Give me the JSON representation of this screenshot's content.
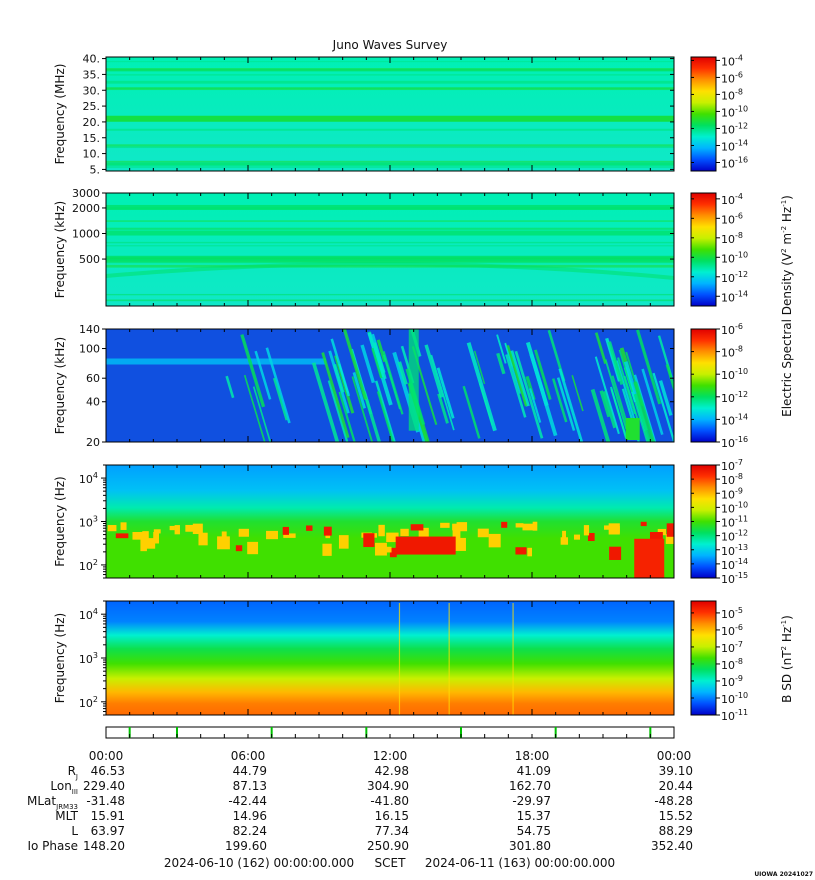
{
  "chart_data": {
    "type": "heatmap",
    "title": "Juno Waves Survey",
    "colors": {
      "spectral_scale": [
        "#0000c8",
        "#0050ff",
        "#00b4ff",
        "#00f0d0",
        "#00e060",
        "#40e000",
        "#c8f000",
        "#ffe000",
        "#ff9000",
        "#ff3000",
        "#e00000"
      ],
      "quiet_level_1": "#00f0b4",
      "quiet_level_2": "#10e8c8",
      "quiet_level_3": "#1050e0",
      "event_marker": "#00c000"
    },
    "panels": [
      {
        "ylabel": "Frequency (MHz)",
        "yscale": "linear",
        "ylim": [
          4.5,
          40.5
        ],
        "yticks": [
          "40.",
          "35.",
          "30.",
          "25.",
          "20.",
          "15.",
          "10.",
          "5."
        ],
        "yvals": [
          40,
          35,
          30,
          25,
          20,
          15,
          10,
          5
        ],
        "cbar_ticks": [
          {
            "base": "10",
            "exp": "-4",
            "e": -4
          },
          {
            "base": "10",
            "exp": "-6",
            "e": -6
          },
          {
            "base": "10",
            "exp": "-8",
            "e": -8
          },
          {
            "base": "10",
            "exp": "-10",
            "e": -10
          },
          {
            "base": "10",
            "exp": "-12",
            "e": -12
          },
          {
            "base": "10",
            "exp": "-14",
            "e": -14
          },
          {
            "base": "10",
            "exp": "-16",
            "e": -16
          }
        ],
        "cbar_range": [
          -17,
          -3.6
        ],
        "pattern": "quiet_band_21MHz"
      },
      {
        "ylabel": "Frequency (kHz)",
        "yscale": "log",
        "ylim": [
          140,
          3000
        ],
        "yticks": [
          "3000",
          "2000",
          "1000",
          "500"
        ],
        "yvals": [
          3000,
          2000,
          1000,
          500
        ],
        "cbar_ticks": [
          {
            "base": "10",
            "exp": "-4",
            "e": -4
          },
          {
            "base": "10",
            "exp": "-6",
            "e": -6
          },
          {
            "base": "10",
            "exp": "-8",
            "e": -8
          },
          {
            "base": "10",
            "exp": "-10",
            "e": -10
          },
          {
            "base": "10",
            "exp": "-12",
            "e": -12
          },
          {
            "base": "10",
            "exp": "-14",
            "e": -14
          }
        ],
        "cbar_range": [
          -15,
          -3.4
        ],
        "pattern": "quiet"
      },
      {
        "ylabel": "Frequency (kHz)",
        "yscale": "log",
        "ylim": [
          20,
          140
        ],
        "yticks": [
          "140",
          "100",
          "60",
          "40",
          "20"
        ],
        "yvals": [
          140,
          100,
          60,
          40,
          20
        ],
        "cbar_ticks": [
          {
            "base": "10",
            "exp": "-6",
            "e": -6
          },
          {
            "base": "10",
            "exp": "-8",
            "e": -8
          },
          {
            "base": "10",
            "exp": "-10",
            "e": -10
          },
          {
            "base": "10",
            "exp": "-12",
            "e": -12
          },
          {
            "base": "10",
            "exp": "-14",
            "e": -14
          },
          {
            "base": "10",
            "exp": "-16",
            "e": -16
          }
        ],
        "cbar_range": [
          -16,
          -6
        ],
        "pattern": "bursty"
      },
      {
        "ylabel": "Frequency (Hz)",
        "yscale": "log",
        "ylim": [
          50,
          20000
        ],
        "yticks": [
          {
            "base": "10",
            "exp": "4",
            "v": 10000
          },
          {
            "base": "10",
            "exp": "3",
            "v": 1000
          },
          {
            "base": "10",
            "exp": "2",
            "v": 100
          }
        ],
        "cbar_ticks": [
          {
            "base": "10",
            "exp": "-7",
            "e": -7
          },
          {
            "base": "10",
            "exp": "-8",
            "e": -8
          },
          {
            "base": "10",
            "exp": "-9",
            "e": -9
          },
          {
            "base": "10",
            "exp": "-10",
            "e": -10
          },
          {
            "base": "10",
            "exp": "-11",
            "e": -11
          },
          {
            "base": "10",
            "exp": "-12",
            "e": -12
          },
          {
            "base": "10",
            "exp": "-13",
            "e": -13
          },
          {
            "base": "10",
            "exp": "-14",
            "e": -14
          },
          {
            "base": "10",
            "exp": "-15",
            "e": -15
          }
        ],
        "cbar_range": [
          -15,
          -7
        ],
        "pattern": "whistler"
      },
      {
        "ylabel": "Frequency (Hz)",
        "yscale": "log",
        "ylim": [
          50,
          20000
        ],
        "yticks": [
          {
            "base": "10",
            "exp": "4",
            "v": 10000
          },
          {
            "base": "10",
            "exp": "3",
            "v": 1000
          },
          {
            "base": "10",
            "exp": "2",
            "v": 100
          }
        ],
        "cbar_ticks": [
          {
            "base": "10",
            "exp": "-5",
            "e": -5
          },
          {
            "base": "10",
            "exp": "-6",
            "e": -6
          },
          {
            "base": "10",
            "exp": "-7",
            "e": -7
          },
          {
            "base": "10",
            "exp": "-8",
            "e": -8
          },
          {
            "base": "10",
            "exp": "-9",
            "e": -9
          },
          {
            "base": "10",
            "exp": "-10",
            "e": -10
          },
          {
            "base": "10",
            "exp": "-11",
            "e": -11
          }
        ],
        "cbar_range": [
          -11,
          -4.3
        ],
        "pattern": "magnetic"
      }
    ],
    "colorbar_labels": {
      "electric_pre": "Electric Spectral Density (V",
      "electric_sup1": "2",
      "electric_mid": " m",
      "electric_sup2": "-2",
      "electric_mid2": " Hz",
      "electric_sup3": "-1",
      "electric_post": ")",
      "magnetic_pre": "B SD (nT",
      "magnetic_sup1": "2",
      "magnetic_mid": " Hz",
      "magnetic_sup2": "-1",
      "magnetic_post": ")"
    },
    "event_marks_hours": [
      1.0,
      3.0,
      7.0,
      11.0,
      15.0,
      19.0,
      23.0
    ],
    "time_ticks_hours": [
      0,
      6,
      12,
      18,
      24
    ],
    "time_labels": [
      "00:00",
      "06:00",
      "12:00",
      "18:00",
      "00:00"
    ],
    "ephemeris": [
      {
        "label": "R",
        "sub": "J",
        "values": [
          "46.53",
          "44.79",
          "42.98",
          "41.09",
          "39.10"
        ]
      },
      {
        "label": "Lon",
        "sub": "III",
        "values": [
          "229.40",
          "87.13",
          "304.90",
          "162.70",
          "20.44"
        ]
      },
      {
        "label": "MLat",
        "sub": "JRM33",
        "values": [
          "-31.48",
          "-42.44",
          "-41.80",
          "-29.97",
          "-48.28"
        ]
      },
      {
        "label": "MLT",
        "sub": "",
        "values": [
          "15.91",
          "14.96",
          "16.15",
          "15.37",
          "15.52"
        ]
      },
      {
        "label": "L",
        "sub": "",
        "values": [
          "63.97",
          "82.24",
          "77.34",
          "54.75",
          "88.29"
        ]
      },
      {
        "label": "Io Phase",
        "sub": "",
        "values": [
          "148.20",
          "199.60",
          "250.90",
          "301.80",
          "352.40"
        ]
      }
    ],
    "footer": {
      "start": "2024-06-10 (162) 00:00:00.000",
      "scet": "SCET",
      "end": "2024-06-11 (163) 00:00:00.000"
    },
    "credit": "UIOWA 20241027"
  }
}
